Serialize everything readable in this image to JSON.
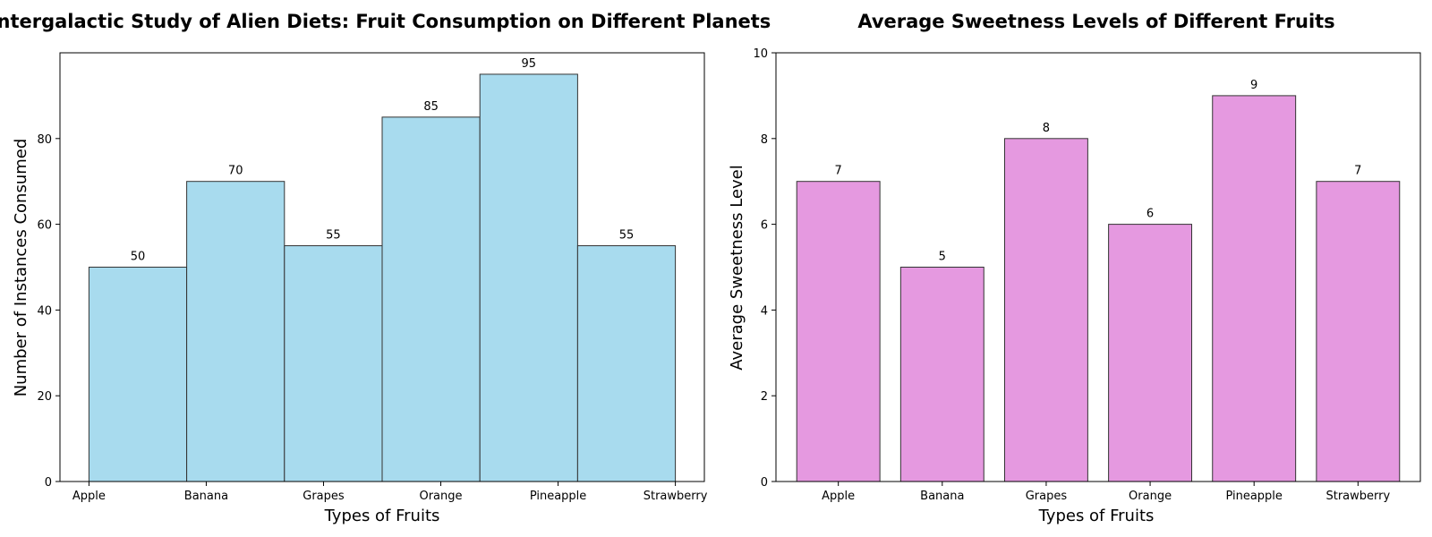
{
  "chart_data": [
    {
      "type": "bar",
      "title": "Intergalactic Study of Alien Diets: Fruit Consumption on Different Planets",
      "xlabel": "Types of Fruits",
      "ylabel": "Number of Instances Consumed",
      "categories": [
        "Apple",
        "Banana",
        "Grapes",
        "Orange",
        "Pineapple",
        "Strawberry"
      ],
      "values": [
        50,
        70,
        55,
        85,
        95,
        55
      ],
      "ylim": [
        0,
        100
      ],
      "yticks": [
        0,
        20,
        40,
        60,
        80
      ],
      "bar_color": "#a8dbee",
      "edge_color": "#333333",
      "grid": false,
      "legend": "none"
    },
    {
      "type": "bar",
      "title": "Average Sweetness Levels of Different Fruits",
      "xlabel": "Types of Fruits",
      "ylabel": "Average Sweetness Level",
      "categories": [
        "Apple",
        "Banana",
        "Grapes",
        "Orange",
        "Pineapple",
        "Strawberry"
      ],
      "values": [
        7,
        5,
        8,
        6,
        9,
        7
      ],
      "ylim": [
        0,
        10
      ],
      "yticks": [
        0,
        2,
        4,
        6,
        8,
        10
      ],
      "bar_color": "#e599e0",
      "edge_color": "#333333",
      "grid": false,
      "legend": "none"
    }
  ]
}
